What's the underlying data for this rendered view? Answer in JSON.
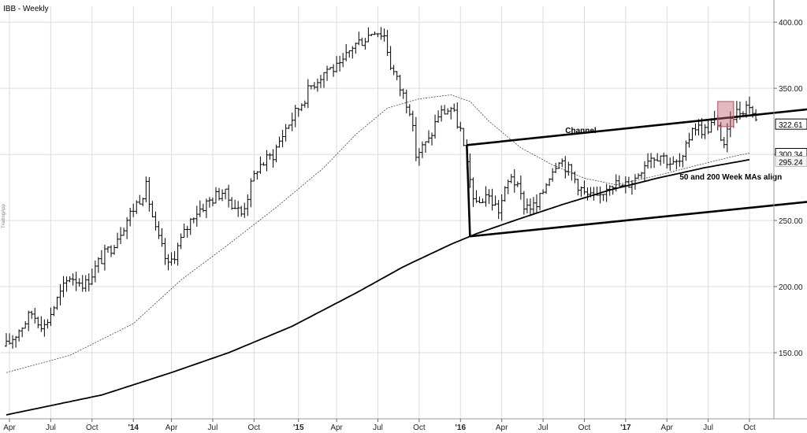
{
  "chart_data": {
    "type": "ohlc",
    "title": "IBB - Weekly",
    "watermark": "TradingApp",
    "price_axis": {
      "range": [
        100,
        412
      ],
      "ticks": [
        "150.00",
        "200.00",
        "250.00",
        "300.00",
        "350.00",
        "400.00"
      ],
      "tick_values": [
        150,
        200,
        250,
        300,
        350,
        400
      ]
    },
    "x_axis": {
      "unit": "weeks since first bar",
      "range": [
        0,
        234
      ],
      "tick_labels": [
        "Apr",
        "Jul",
        "Oct",
        "'14",
        "Apr",
        "Jul",
        "Oct",
        "'15",
        "Apr",
        "Jul",
        "Oct",
        "'16",
        "Apr",
        "Jul",
        "Oct",
        "'17",
        "Apr",
        "Jul",
        "Oct"
      ],
      "tick_weeks": [
        1,
        14,
        27,
        40,
        52,
        65,
        78,
        92,
        104,
        117,
        130,
        143,
        156,
        169,
        182,
        195,
        208,
        221,
        234
      ]
    },
    "anchors": [
      {
        "w": 0,
        "p": 155
      },
      {
        "w": 8,
        "p": 180
      },
      {
        "w": 12,
        "p": 170
      },
      {
        "w": 16,
        "p": 190
      },
      {
        "w": 20,
        "p": 208
      },
      {
        "w": 25,
        "p": 202
      },
      {
        "w": 29,
        "p": 218
      },
      {
        "w": 33,
        "p": 230
      },
      {
        "w": 39,
        "p": 255
      },
      {
        "w": 44,
        "p": 275
      },
      {
        "w": 47,
        "p": 242
      },
      {
        "w": 51,
        "p": 215
      },
      {
        "w": 55,
        "p": 235
      },
      {
        "w": 59,
        "p": 255
      },
      {
        "w": 64,
        "p": 265
      },
      {
        "w": 68,
        "p": 272
      },
      {
        "w": 74,
        "p": 255
      },
      {
        "w": 79,
        "p": 290
      },
      {
        "w": 84,
        "p": 300
      },
      {
        "w": 88,
        "p": 320
      },
      {
        "w": 92,
        "p": 335
      },
      {
        "w": 96,
        "p": 352
      },
      {
        "w": 101,
        "p": 365
      },
      {
        "w": 105,
        "p": 365
      },
      {
        "w": 109,
        "p": 382
      },
      {
        "w": 113,
        "p": 388
      },
      {
        "w": 116,
        "p": 395
      },
      {
        "w": 119,
        "p": 390
      },
      {
        "w": 121,
        "p": 368
      },
      {
        "w": 124,
        "p": 350
      },
      {
        "w": 127,
        "p": 335
      },
      {
        "w": 129,
        "p": 300
      },
      {
        "w": 133,
        "p": 310
      },
      {
        "w": 136,
        "p": 330
      },
      {
        "w": 140,
        "p": 335
      },
      {
        "w": 143,
        "p": 318
      },
      {
        "w": 145,
        "p": 290
      },
      {
        "w": 148,
        "p": 260
      },
      {
        "w": 151,
        "p": 270
      },
      {
        "w": 155,
        "p": 258
      },
      {
        "w": 159,
        "p": 285
      },
      {
        "w": 163,
        "p": 262
      },
      {
        "w": 167,
        "p": 260
      },
      {
        "w": 171,
        "p": 285
      },
      {
        "w": 174,
        "p": 298
      },
      {
        "w": 178,
        "p": 285
      },
      {
        "w": 182,
        "p": 270
      },
      {
        "w": 186,
        "p": 265
      },
      {
        "w": 190,
        "p": 280
      },
      {
        "w": 194,
        "p": 275
      },
      {
        "w": 198,
        "p": 282
      },
      {
        "w": 202,
        "p": 298
      },
      {
        "w": 206,
        "p": 300
      },
      {
        "w": 210,
        "p": 292
      },
      {
        "w": 213,
        "p": 295
      },
      {
        "w": 216,
        "p": 322
      },
      {
        "w": 220,
        "p": 318
      },
      {
        "w": 223,
        "p": 325
      },
      {
        "w": 226,
        "p": 308
      },
      {
        "w": 229,
        "p": 330
      },
      {
        "w": 232,
        "p": 335
      },
      {
        "w": 234,
        "p": 338
      },
      {
        "w": 236,
        "p": 325
      }
    ],
    "noise_amplitude": 6,
    "ma50": [
      {
        "w": 0,
        "p": 135
      },
      {
        "w": 20,
        "p": 148
      },
      {
        "w": 40,
        "p": 172
      },
      {
        "w": 55,
        "p": 205
      },
      {
        "w": 70,
        "p": 232
      },
      {
        "w": 85,
        "p": 260
      },
      {
        "w": 100,
        "p": 290
      },
      {
        "w": 110,
        "p": 315
      },
      {
        "w": 120,
        "p": 335
      },
      {
        "w": 130,
        "p": 342
      },
      {
        "w": 140,
        "p": 345
      },
      {
        "w": 146,
        "p": 340
      },
      {
        "w": 152,
        "p": 325
      },
      {
        "w": 162,
        "p": 305
      },
      {
        "w": 172,
        "p": 292
      },
      {
        "w": 182,
        "p": 282
      },
      {
        "w": 192,
        "p": 277
      },
      {
        "w": 205,
        "p": 284
      },
      {
        "w": 218,
        "p": 292
      },
      {
        "w": 228,
        "p": 298
      },
      {
        "w": 234,
        "p": 301
      }
    ],
    "ma200": [
      {
        "w": 0,
        "p": 103
      },
      {
        "w": 30,
        "p": 118
      },
      {
        "w": 52,
        "p": 135
      },
      {
        "w": 70,
        "p": 150
      },
      {
        "w": 90,
        "p": 170
      },
      {
        "w": 110,
        "p": 195
      },
      {
        "w": 125,
        "p": 215
      },
      {
        "w": 140,
        "p": 232
      },
      {
        "w": 148,
        "p": 240
      },
      {
        "w": 160,
        "p": 250
      },
      {
        "w": 175,
        "p": 262
      },
      {
        "w": 190,
        "p": 273
      },
      {
        "w": 205,
        "p": 282
      },
      {
        "w": 220,
        "p": 290
      },
      {
        "w": 234,
        "p": 296
      }
    ],
    "channel": {
      "upper": [
        {
          "w": 145,
          "p": 307
        },
        {
          "w": 256,
          "p": 335
        }
      ],
      "lower": [
        {
          "w": 146,
          "p": 238
        },
        {
          "w": 256,
          "p": 265
        }
      ],
      "left_edge": [
        {
          "w": 145,
          "p": 307
        },
        {
          "w": 146,
          "p": 238
        }
      ]
    },
    "highlight_box": {
      "w0": 224,
      "w1": 229,
      "p0": 321,
      "p1": 340
    },
    "price_labels": [
      {
        "text": "322.61",
        "value": 322.61
      },
      {
        "text": "300.34",
        "value": 300.34
      },
      {
        "text": "295.24",
        "value": 295.24
      }
    ],
    "annotations": [
      {
        "text": "Channel",
        "w": 176,
        "p": 316
      },
      {
        "text": "50 and 200 Week MAs align",
        "w": 212,
        "p": 281
      }
    ]
  }
}
